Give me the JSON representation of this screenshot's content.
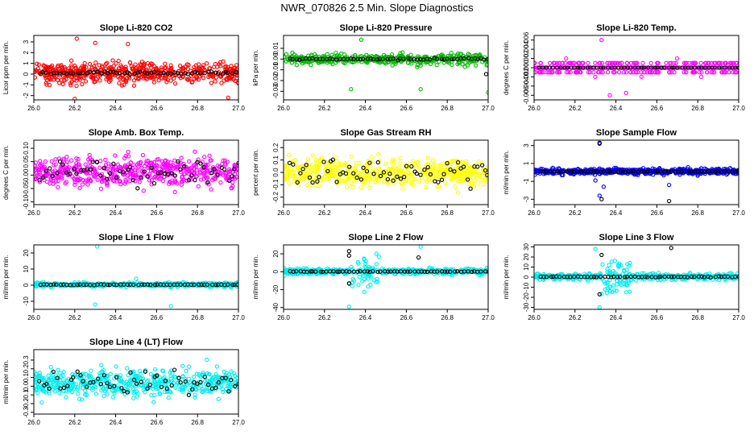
{
  "figure_title": "NWR_070826  2.5 Min. Slope Diagnostics",
  "colors": {
    "highlight": "#000000"
  },
  "chart_data": [
    {
      "type": "scatter",
      "title": "Slope Li-820 CO2",
      "ylabel": "Licor ppm per min.",
      "xlim": [
        26.0,
        27.0
      ],
      "xticks": [
        "26.0",
        "26.2",
        "26.4",
        "26.6",
        "26.8",
        "27.0"
      ],
      "ylim": [
        -2.4,
        3.6
      ],
      "yticks": [
        {
          "v": -2,
          "t": "-2"
        },
        {
          "v": -1,
          "t": "-1"
        },
        {
          "v": 0,
          "t": "0"
        },
        {
          "v": 1,
          "t": "1"
        },
        {
          "v": 2,
          "t": "2"
        },
        {
          "v": 3,
          "t": "3"
        }
      ],
      "color": "#ff0000",
      "n": 520,
      "center": 0.1,
      "spread": 0.8,
      "outliers": [
        [
          26.21,
          3.3
        ],
        [
          26.2,
          -2.3
        ],
        [
          26.95,
          -2.2
        ],
        [
          26.3,
          2.9
        ],
        [
          26.46,
          2.8
        ]
      ],
      "black_outliers": []
    },
    {
      "type": "scatter",
      "title": "Slope Li-820 Pressure",
      "ylabel": "kPa per min.",
      "xlim": [
        26.0,
        27.0
      ],
      "xticks": [
        "26.0",
        "26.2",
        "26.4",
        "26.6",
        "26.8",
        "27.0"
      ],
      "ylim": [
        -0.038,
        0.022
      ],
      "yticks": [
        {
          "v": -0.03,
          "t": "-0.03"
        },
        {
          "v": -0.02,
          "t": "-0.02"
        },
        {
          "v": -0.01,
          "t": "-0.01"
        },
        {
          "v": 0,
          "t": "0.00"
        },
        {
          "v": 0.01,
          "t": "0.01"
        }
      ],
      "color": "#00bb00",
      "n": 420,
      "center": 0.0,
      "spread": 0.004,
      "outliers": [
        [
          26.33,
          -0.028
        ],
        [
          26.67,
          -0.028
        ],
        [
          27.0,
          -0.031
        ],
        [
          26.38,
          0.018
        ]
      ],
      "black_outliers": [
        [
          26.99,
          -0.014
        ]
      ]
    },
    {
      "type": "scatter",
      "title": "Slope Li-820 Temp.",
      "ylabel": "degrees C per min.",
      "xlim": [
        26.0,
        27.0
      ],
      "xticks": [
        "26.0",
        "26.2",
        "26.4",
        "26.6",
        "26.8",
        "27.0"
      ],
      "ylim": [
        -0.007,
        0.007
      ],
      "yticks": [
        {
          "v": -0.006,
          "t": "-0.006"
        },
        {
          "v": -0.004,
          "t": "-0.004"
        },
        {
          "v": -0.002,
          "t": "-0.002"
        },
        {
          "v": 0,
          "t": "0.000"
        },
        {
          "v": 0.002,
          "t": "0.002"
        },
        {
          "v": 0.004,
          "t": "0.004"
        },
        {
          "v": 0.006,
          "t": "0.006"
        }
      ],
      "color": "#ff00ff",
      "n": 420,
      "center": 0.0,
      "spread": 0.0011,
      "quant": 0.001,
      "outliers": [
        [
          26.33,
          0.006
        ],
        [
          26.45,
          -0.0055
        ],
        [
          26.37,
          -0.006
        ]
      ],
      "black_outliers": []
    },
    {
      "type": "scatter",
      "title": "Slope Amb. Box Temp.",
      "ylabel": "degrees C per min.",
      "xlim": [
        26.0,
        27.0
      ],
      "xticks": [
        "26.0",
        "26.2",
        "26.4",
        "26.6",
        "26.8",
        "27.0"
      ],
      "ylim": [
        -0.11,
        0.13
      ],
      "yticks": [
        {
          "v": -0.1,
          "t": "-0.10"
        },
        {
          "v": -0.05,
          "t": "-0.05"
        },
        {
          "v": 0,
          "t": "0.00"
        },
        {
          "v": 0.05,
          "t": "0.05"
        },
        {
          "v": 0.1,
          "t": "0.10"
        }
      ],
      "color": "#ff00ff",
      "n": 520,
      "center": 0.01,
      "spread": 0.045,
      "outliers": [],
      "black_outliers": [],
      "black_spread": 0.04
    },
    {
      "type": "scatter",
      "title": "Slope Gas Stream RH",
      "ylabel": "percent per min.",
      "xlim": [
        26.0,
        27.0
      ],
      "xticks": [
        "26.0",
        "26.2",
        "26.4",
        "26.6",
        "26.8",
        "27.0"
      ],
      "ylim": [
        -0.26,
        0.26
      ],
      "yticks": [
        {
          "v": -0.2,
          "t": "-0.2"
        },
        {
          "v": -0.1,
          "t": "-0.1"
        },
        {
          "v": 0,
          "t": "0.0"
        },
        {
          "v": 0.1,
          "t": "0.1"
        },
        {
          "v": 0.2,
          "t": "0.2"
        }
      ],
      "color": "#ffff00",
      "n": 520,
      "center": 0.0,
      "spread": 0.09,
      "outliers": [],
      "black_outliers": [],
      "black_spread": 0.08
    },
    {
      "type": "scatter",
      "title": "Slope Sample Flow",
      "ylabel": "ml/min per min.",
      "xlim": [
        26.0,
        27.0
      ],
      "xticks": [
        "26.0",
        "26.2",
        "26.4",
        "26.6",
        "26.8",
        "27.0"
      ],
      "ylim": [
        -3.6,
        3.6
      ],
      "yticks": [
        {
          "v": -3,
          "t": "-3"
        },
        {
          "v": -1,
          "t": "-1"
        },
        {
          "v": 1,
          "t": "1"
        },
        {
          "v": 3,
          "t": "3"
        }
      ],
      "color": "#0000ff",
      "n": 480,
      "center": 0.1,
      "spread": 0.28,
      "outliers": [
        [
          26.32,
          3.2
        ],
        [
          26.32,
          -2.6
        ],
        [
          26.3,
          -0.9
        ],
        [
          26.34,
          -1.6
        ],
        [
          26.66,
          -1.4
        ]
      ],
      "black_outliers": [
        [
          26.32,
          3.3
        ],
        [
          26.33,
          -3.0
        ],
        [
          26.66,
          -3.2
        ]
      ]
    },
    {
      "type": "scatter",
      "title": "Slope Line 1 Flow",
      "ylabel": "ml/min per min.",
      "xlim": [
        26.0,
        27.0
      ],
      "xticks": [
        "26.0",
        "26.2",
        "26.4",
        "26.6",
        "26.8",
        "27.0"
      ],
      "ylim": [
        -15,
        25
      ],
      "yticks": [
        {
          "v": -10,
          "t": "-10"
        },
        {
          "v": 0,
          "t": "0"
        },
        {
          "v": 10,
          "t": "10"
        },
        {
          "v": 20,
          "t": "20"
        }
      ],
      "color": "#00eeee",
      "n": 460,
      "center": 0.3,
      "spread": 1.0,
      "outliers": [
        [
          26.31,
          24
        ],
        [
          26.3,
          -12
        ],
        [
          26.67,
          -13
        ],
        [
          26.5,
          4
        ]
      ],
      "black_outliers": []
    },
    {
      "type": "scatter",
      "title": "Slope Line 2 Flow",
      "ylabel": "ml/min per min.",
      "xlim": [
        26.0,
        27.0
      ],
      "xticks": [
        "26.0",
        "26.2",
        "26.4",
        "26.6",
        "26.8",
        "27.0"
      ],
      "ylim": [
        -42,
        30
      ],
      "yticks": [
        {
          "v": -40,
          "t": "-40"
        },
        {
          "v": -20,
          "t": "-20"
        },
        {
          "v": 0,
          "t": "0"
        },
        {
          "v": 20,
          "t": "20"
        }
      ],
      "color": "#00eeee",
      "n": 460,
      "center": 0.3,
      "spread": 2.5,
      "burst": [
        26.32,
        26.47,
        6
      ],
      "outliers": [
        [
          26.32,
          -39
        ],
        [
          26.67,
          28
        ]
      ],
      "black_outliers": [
        [
          26.32,
          23
        ],
        [
          26.32,
          18
        ],
        [
          26.32,
          -13
        ],
        [
          26.66,
          16
        ]
      ]
    },
    {
      "type": "scatter",
      "title": "Slope Line 3 Flow",
      "ylabel": "ml/min per min.",
      "xlim": [
        26.0,
        27.0
      ],
      "xticks": [
        "26.0",
        "26.2",
        "26.4",
        "26.6",
        "26.8",
        "27.0"
      ],
      "ylim": [
        -32,
        32
      ],
      "yticks": [
        {
          "v": -30,
          "t": "-30"
        },
        {
          "v": -20,
          "t": "-20"
        },
        {
          "v": -10,
          "t": "-10"
        },
        {
          "v": 0,
          "t": "0"
        },
        {
          "v": 10,
          "t": "10"
        },
        {
          "v": 20,
          "t": "20"
        },
        {
          "v": 30,
          "t": "30"
        }
      ],
      "color": "#00eeee",
      "n": 460,
      "center": 0.3,
      "spread": 2.5,
      "burst": [
        26.32,
        26.47,
        6
      ],
      "outliers": [
        [
          26.32,
          -30
        ],
        [
          26.3,
          28
        ]
      ],
      "black_outliers": [
        [
          26.33,
          22
        ],
        [
          26.67,
          29
        ],
        [
          26.32,
          -17
        ]
      ]
    },
    {
      "type": "scatter",
      "title": "Slope Line 4 (LT) Flow",
      "ylabel": "ml/min per min.",
      "xlim": [
        26.0,
        27.0
      ],
      "xticks": [
        "26.0",
        "26.2",
        "26.4",
        "26.6",
        "26.8",
        "27.0"
      ],
      "ylim": [
        -0.32,
        0.42
      ],
      "yticks": [
        {
          "v": -0.3,
          "t": "-0.3"
        },
        {
          "v": -0.2,
          "t": "-0.2"
        },
        {
          "v": -0.1,
          "t": "-0.1"
        },
        {
          "v": 0,
          "t": "0.0"
        },
        {
          "v": 0.1,
          "t": "0.1"
        },
        {
          "v": 0.2,
          "t": "0.2"
        },
        {
          "v": 0.3,
          "t": "0.3"
        }
      ],
      "color": "#00eeee",
      "n": 520,
      "center": 0.04,
      "spread": 0.13,
      "outliers": [],
      "black_outliers": [],
      "black_spread": 0.1
    }
  ]
}
